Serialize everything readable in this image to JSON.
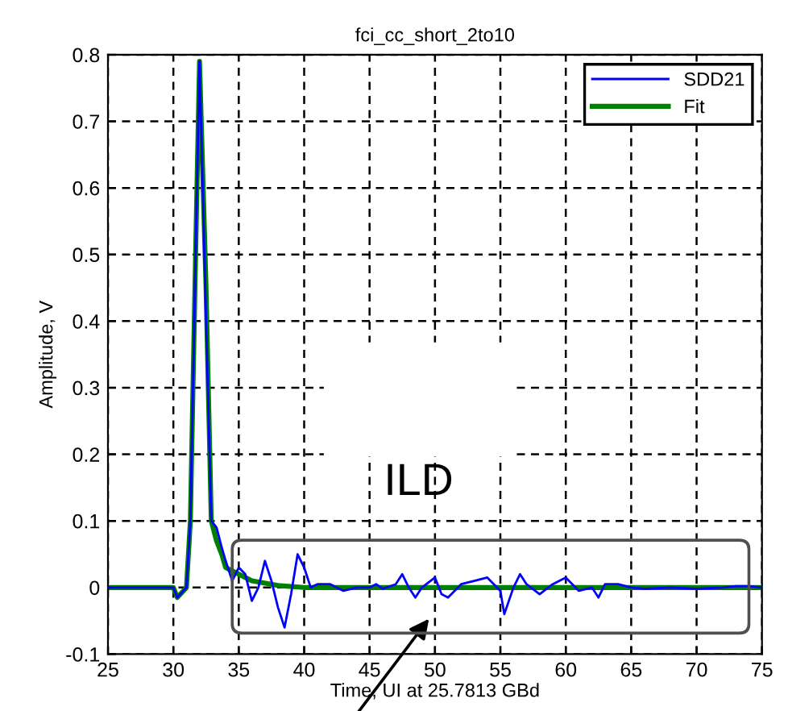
{
  "chart_data": {
    "type": "line",
    "title": "fci_cc_short_2to10",
    "xlabel": "Time, UI at 25.7813 GBd",
    "ylabel": "Amplitude, V",
    "xlim": [
      25,
      75
    ],
    "xticks": [
      25,
      30,
      35,
      40,
      45,
      50,
      55,
      60,
      65,
      70,
      75
    ],
    "ylim": [
      -0.1,
      0.8
    ],
    "yticks": [
      -0.1,
      0,
      0.1,
      0.2,
      0.3,
      0.4,
      0.5,
      0.6,
      0.7,
      0.8
    ],
    "grid": true,
    "legend": "top right",
    "line_style": "solid",
    "marker": "none",
    "annotations": [
      "ILD"
    ],
    "series": [
      {
        "name": "SDD21",
        "color": "#0000ff",
        "x": [
          25,
          26,
          27,
          28,
          29,
          30,
          30.3,
          31,
          31.3,
          31.7,
          32,
          32.5,
          32.9,
          33.3,
          33.7,
          34,
          34.5,
          35,
          35.5,
          36,
          36.5,
          37,
          37.5,
          38,
          38.5,
          39,
          39.5,
          40,
          40.5,
          41,
          42,
          43,
          44,
          45,
          45.5,
          46,
          47,
          47.5,
          48,
          48.5,
          49,
          50,
          50.5,
          51,
          52,
          53,
          54,
          55,
          55.3,
          56,
          56.5,
          57,
          58,
          59,
          60,
          60.5,
          61,
          62,
          62.5,
          63,
          64,
          65,
          66,
          68,
          70,
          72,
          73,
          74,
          75
        ],
        "values": [
          0,
          0,
          0,
          0,
          0,
          0,
          -0.015,
          0,
          0.1,
          0.5,
          0.79,
          0.4,
          0.1,
          0.09,
          0.06,
          0.04,
          0.01,
          0.03,
          0.02,
          -0.02,
          0,
          0.04,
          0.01,
          -0.03,
          -0.06,
          -0.01,
          0.05,
          0.03,
          0,
          0.005,
          0.005,
          -0.005,
          0,
          0,
          0.005,
          -0.002,
          0.005,
          0.02,
          0,
          -0.015,
          0,
          0.015,
          -0.01,
          -0.015,
          0.005,
          0.01,
          0.015,
          -0.005,
          -0.04,
          0,
          0.02,
          0.005,
          -0.01,
          0.005,
          0.015,
          0.005,
          -0.005,
          0,
          -0.015,
          0.005,
          0.005,
          0,
          -0.002,
          0,
          -0.002,
          0,
          0.002,
          0.002,
          0
        ]
      },
      {
        "name": "Fit",
        "color": "#008000",
        "x": [
          25,
          26,
          27,
          28,
          29,
          30,
          30.3,
          31,
          31.3,
          31.7,
          32,
          32.5,
          32.9,
          33.3,
          33.7,
          34,
          35,
          36,
          38,
          40,
          45,
          50,
          55,
          60,
          65,
          70,
          75
        ],
        "values": [
          0,
          0,
          0,
          0,
          0,
          0,
          -0.015,
          0,
          0.1,
          0.5,
          0.79,
          0.45,
          0.1,
          0.07,
          0.05,
          0.03,
          0.02,
          0.01,
          0.003,
          0,
          0,
          0,
          0,
          0,
          0,
          0,
          0
        ]
      }
    ]
  }
}
